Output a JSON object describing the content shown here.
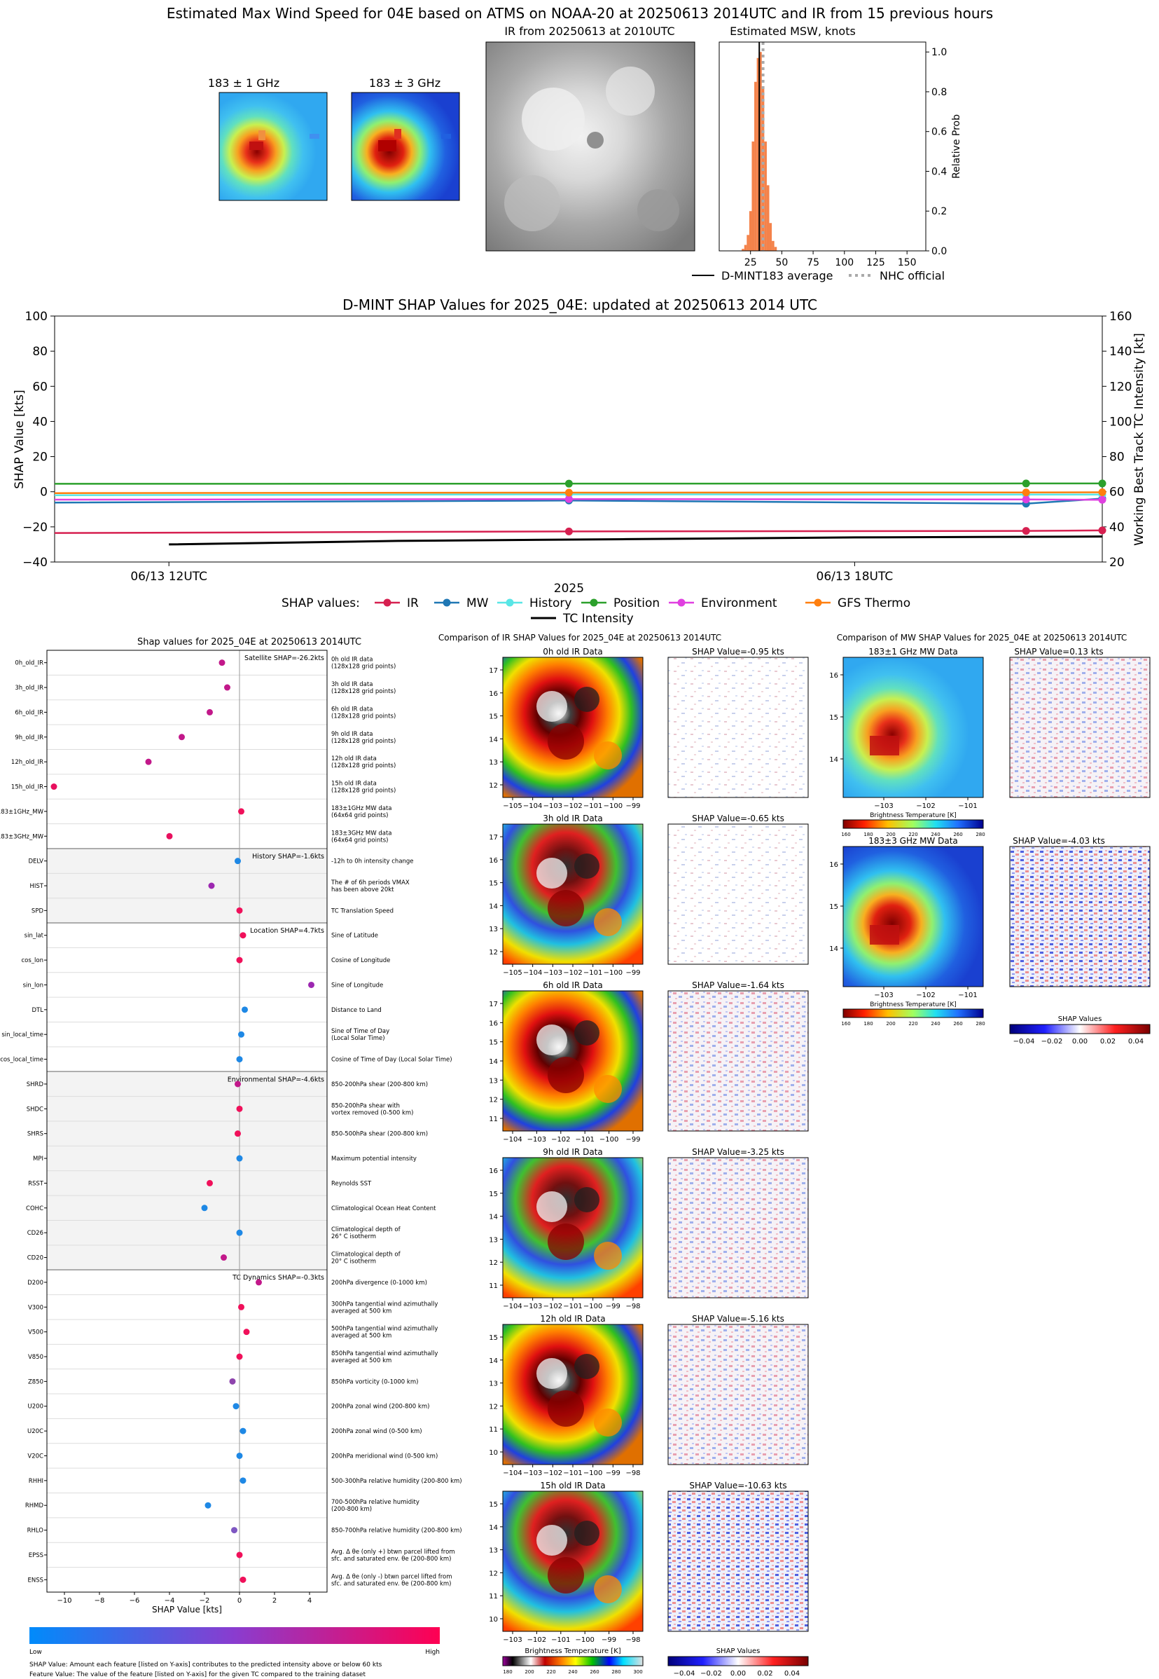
{
  "header": {
    "title": "Estimated Max Wind Speed for 04E based on ATMS on NOAA-20 at 20250613 2014UTC and IR from 15 previous hours",
    "mw1_title": "183 ± 1 GHz",
    "mw2_title": "183 ± 3 GHz",
    "ir_title": "IR from 20250613 at 2010UTC",
    "hist_title": "Estimated MSW, knots"
  },
  "histogram_chart": {
    "type": "bar",
    "xticks": [
      "25",
      "50",
      "75",
      "100",
      "125",
      "150"
    ],
    "xtick_values": [
      25,
      50,
      75,
      100,
      125,
      150
    ],
    "xlim": [
      0,
      165
    ],
    "yticks": [
      "0.0",
      "0.2",
      "0.4",
      "0.6",
      "0.8",
      "1.0"
    ],
    "ytick_values": [
      0,
      0.2,
      0.4,
      0.6,
      0.8,
      1.0
    ],
    "ylim": [
      0,
      1.05
    ],
    "ylabel": "Relative Prob",
    "bins_left": [
      18,
      20,
      22,
      24,
      26,
      28,
      30,
      32,
      34,
      36,
      38,
      40,
      42,
      44
    ],
    "bin_width": 2,
    "bin_values": [
      0.01,
      0.03,
      0.08,
      0.2,
      0.55,
      0.85,
      0.97,
      1.0,
      0.82,
      0.55,
      0.33,
      0.14,
      0.05,
      0.02
    ],
    "dmint_average": 32,
    "nhc_official": 35,
    "legend": [
      "D-MINT183 average",
      "NHC official"
    ],
    "bar_color": "#f4824a"
  },
  "shap_timeseries": {
    "type": "line",
    "title": "D-MINT SHAP Values for 2025_04E: updated at 20250613 2014 UTC",
    "ylabel": "SHAP Value [kts]",
    "y2label": "Working Best Track TC Intensity [kt]",
    "xlabel": "2025",
    "ylim": [
      -40,
      100
    ],
    "y2lim": [
      20,
      160
    ],
    "yticks": [
      "−40",
      "−20",
      "0",
      "20",
      "40",
      "60",
      "80",
      "100"
    ],
    "ytick_values": [
      -40,
      -20,
      0,
      20,
      40,
      60,
      80,
      100
    ],
    "y2ticks": [
      "20",
      "40",
      "60",
      "80",
      "100",
      "120",
      "140",
      "160"
    ],
    "y2tick_values": [
      20,
      40,
      60,
      80,
      100,
      120,
      140,
      160
    ],
    "xlim_hours": [
      -3,
      24.5
    ],
    "xticks": [
      "06/13 12UTC",
      "06/13 18UTC"
    ],
    "xtick_hours": [
      0,
      18
    ],
    "points_hours": [
      10.5,
      22.5
    ],
    "series": [
      {
        "name": "IR",
        "color": "#d62050",
        "values": [
          -23.5,
          -22.6,
          -22.3
        ],
        "hours": [
          -3,
          10.5,
          22.5
        ],
        "end": -22.0
      },
      {
        "name": "MW",
        "color": "#1f77b4",
        "values": [
          -6.2,
          -5.0,
          -6.8
        ],
        "hours": [
          -3,
          10.5,
          22.5
        ],
        "end": -3.9
      },
      {
        "name": "History",
        "color": "#59e6e6",
        "values": [
          -2.0,
          -1.5,
          -1.6
        ],
        "hours": [
          -3,
          10.5,
          22.5
        ],
        "end": -1.6
      },
      {
        "name": "Position",
        "color": "#2ca02c",
        "values": [
          4.5,
          4.6,
          4.7
        ],
        "hours": [
          -3,
          10.5,
          22.5
        ],
        "end": 4.7
      },
      {
        "name": "Environment",
        "color": "#e040e0",
        "values": [
          -4.5,
          -4.2,
          -4.4
        ],
        "hours": [
          -3,
          10.5,
          22.5
        ],
        "end": -4.6
      },
      {
        "name": "GFS Thermo",
        "color": "#ff7f0e",
        "values": [
          -0.8,
          -0.5,
          -0.4
        ],
        "hours": [
          -3,
          10.5,
          22.5
        ],
        "end": -0.3
      }
    ],
    "intensity": {
      "name": "TC Intensity",
      "color": "#000000",
      "hours": [
        0,
        6,
        12,
        18,
        24.5
      ],
      "values": [
        30,
        32,
        33,
        34,
        34.5
      ]
    },
    "legend_prefix": "SHAP values:"
  },
  "feature_chart": {
    "type": "scatter",
    "title": "Shap values for 2025_04E at 20250613 2014UTC",
    "xlabel": "SHAP Value [kts]",
    "xlim": [
      -11,
      5
    ],
    "xticks": [
      "−10",
      "−8",
      "−6",
      "−4",
      "−2",
      "0",
      "2",
      "4"
    ],
    "xtick_values": [
      -10,
      -8,
      -6,
      -4,
      -2,
      0,
      2,
      4
    ],
    "colorbar_low": "Low",
    "colorbar_high": "High",
    "groups": [
      {
        "label": "Satellite SHAP=-26.2kts",
        "shaded": false,
        "count": 8
      },
      {
        "label": "History SHAP=-1.6kts",
        "shaded": true,
        "count": 3
      },
      {
        "label": "Location SHAP=4.7kts",
        "shaded": false,
        "count": 6
      },
      {
        "label": "Environmental SHAP=-4.6kts",
        "shaded": true,
        "count": 8
      },
      {
        "label": "TC Dynamics SHAP=-0.3kts",
        "shaded": false,
        "count": 13
      }
    ],
    "features": [
      {
        "name": "0h_old_IR",
        "desc": [
          "0h old IR data",
          "(128x128 grid points)"
        ],
        "value": -1.0,
        "color": "#c2188a"
      },
      {
        "name": "3h_old_IR",
        "desc": [
          "3h old IR data",
          "(128x128 grid points)"
        ],
        "value": -0.7,
        "color": "#c2188a"
      },
      {
        "name": "6h_old_IR",
        "desc": [
          "6h old IR data",
          "(128x128 grid points)"
        ],
        "value": -1.7,
        "color": "#c2188a"
      },
      {
        "name": "9h_old_IR",
        "desc": [
          "9h old IR data",
          "(128x128 grid points)"
        ],
        "value": -3.3,
        "color": "#c2188a"
      },
      {
        "name": "12h_old_IR",
        "desc": [
          "12h old IR data",
          "(128x128 grid points)"
        ],
        "value": -5.2,
        "color": "#c2188a"
      },
      {
        "name": "15h_old_IR",
        "desc": [
          "15h old IR data",
          "(128x128 grid points)"
        ],
        "value": -10.6,
        "color": "#e8105e"
      },
      {
        "name": "183±1GHz_MW",
        "desc": [
          "183±1GHz MW data",
          "(64x64 grid points)"
        ],
        "value": 0.1,
        "color": "#f0105a"
      },
      {
        "name": "183±3GHz_MW",
        "desc": [
          "183±3GHz MW data",
          "(64x64 grid points)"
        ],
        "value": -4.0,
        "color": "#e8105e"
      },
      {
        "name": "DELV",
        "desc": [
          "-12h to 0h intensity change"
        ],
        "value": -0.1,
        "color": "#1e88e5"
      },
      {
        "name": "HIST",
        "desc": [
          "The # of 6h periods VMAX",
          "has been above 20kt"
        ],
        "value": -1.6,
        "color": "#9c27b0"
      },
      {
        "name": "SPD",
        "desc": [
          "TC Translation Speed"
        ],
        "value": 0.0,
        "color": "#f0105a"
      },
      {
        "name": "sin_lat",
        "desc": [
          "Sine of Latitude"
        ],
        "value": 0.2,
        "color": "#f0105a"
      },
      {
        "name": "cos_lon",
        "desc": [
          "Cosine of Longitude"
        ],
        "value": 0.0,
        "color": "#f0105a"
      },
      {
        "name": "sin_lon",
        "desc": [
          "Sine of Longitude"
        ],
        "value": 4.1,
        "color": "#9c27b0"
      },
      {
        "name": "DTL",
        "desc": [
          "Distance to Land"
        ],
        "value": 0.3,
        "color": "#1e88e5"
      },
      {
        "name": "sin_local_time",
        "desc": [
          "Sine of Time of Day",
          "(Local Solar Time)"
        ],
        "value": 0.1,
        "color": "#1e88e5"
      },
      {
        "name": "cos_local_time",
        "desc": [
          "Cosine of Time of Day (Local Solar Time)"
        ],
        "value": 0.0,
        "color": "#1e88e5"
      },
      {
        "name": "SHRD",
        "desc": [
          "850-200hPa shear (200-800 km)"
        ],
        "value": -0.1,
        "color": "#c2188a"
      },
      {
        "name": "SHDC",
        "desc": [
          "850-200hPa shear with",
          "vortex removed (0-500 km)"
        ],
        "value": 0.0,
        "color": "#f0105a"
      },
      {
        "name": "SHRS",
        "desc": [
          "850-500hPa shear (200-800 km)"
        ],
        "value": -0.1,
        "color": "#f0105a"
      },
      {
        "name": "MPI",
        "desc": [
          "Maximum potential intensity"
        ],
        "value": 0.0,
        "color": "#1e88e5"
      },
      {
        "name": "RSST",
        "desc": [
          "Reynolds SST"
        ],
        "value": -1.7,
        "color": "#f0105a"
      },
      {
        "name": "COHC",
        "desc": [
          "Climatological Ocean Heat Content"
        ],
        "value": -2.0,
        "color": "#1e88e5"
      },
      {
        "name": "CD26",
        "desc": [
          "Climatological depth of",
          "26° C isotherm"
        ],
        "value": 0.0,
        "color": "#1e88e5"
      },
      {
        "name": "CD20",
        "desc": [
          "Climatological depth of",
          "20° C isotherm"
        ],
        "value": -0.9,
        "color": "#c2188a"
      },
      {
        "name": "D200",
        "desc": [
          "200hPa divergence (0-1000 km)"
        ],
        "value": 1.1,
        "color": "#c2188a"
      },
      {
        "name": "V300",
        "desc": [
          "300hPa tangential wind azimuthally",
          "averaged at 500 km"
        ],
        "value": 0.1,
        "color": "#f0105a"
      },
      {
        "name": "V500",
        "desc": [
          "500hPa tangential wind azimuthally",
          "averaged at 500 km"
        ],
        "value": 0.4,
        "color": "#f0105a"
      },
      {
        "name": "V850",
        "desc": [
          "850hPa tangential wind azimuthally",
          "averaged at 500 km"
        ],
        "value": 0.0,
        "color": "#f0105a"
      },
      {
        "name": "Z850",
        "desc": [
          "850hPa vorticity (0-1000 km)"
        ],
        "value": -0.4,
        "color": "#8e44ad"
      },
      {
        "name": "U200",
        "desc": [
          "200hPa zonal wind (200-800 km)"
        ],
        "value": -0.2,
        "color": "#1e88e5"
      },
      {
        "name": "U20C",
        "desc": [
          "200hPa zonal wind (0-500 km)"
        ],
        "value": 0.2,
        "color": "#1e88e5"
      },
      {
        "name": "V20C",
        "desc": [
          "200hPa meridional wind (0-500 km)"
        ],
        "value": 0.0,
        "color": "#1e88e5"
      },
      {
        "name": "RHHI",
        "desc": [
          "500-300hPa relative humidity (200-800 km)"
        ],
        "value": 0.2,
        "color": "#1e88e5"
      },
      {
        "name": "RHMD",
        "desc": [
          "700-500hPa relative humidity",
          "(200-800 km)"
        ],
        "value": -1.8,
        "color": "#1e88e5"
      },
      {
        "name": "RHLO",
        "desc": [
          "850-700hPa relative humidity (200-800 km)"
        ],
        "value": -0.3,
        "color": "#7e57c2"
      },
      {
        "name": "EPSS",
        "desc": [
          "Avg. Δ θe (only +) btwn parcel lifted from",
          "sfc. and saturated env. θe (200-800 km)"
        ],
        "value": 0.0,
        "color": "#f0105a"
      },
      {
        "name": "ENSS",
        "desc": [
          "Avg. Δ θe (only -) btwn parcel lifted from",
          "sfc. and saturated env. θe (200-800 km)"
        ],
        "value": 0.2,
        "color": "#f0105a"
      }
    ],
    "footnote1": "SHAP Value: Amount each feature [listed on Y-axis] contributes to the predicted intensity above or below 60 kts",
    "footnote2": "Feature Value: The value of the feature [listed on Y-axis] for the given TC compared to the training dataset"
  },
  "ir_comparison": {
    "title": "Comparison of IR SHAP Values for 2025_04E at 20250613 2014UTC",
    "panels": [
      {
        "label": "0h old IR Data",
        "shap": "SHAP Value=-0.95 kts",
        "xticks": [
          "−105",
          "−104",
          "−103",
          "−102",
          "−101",
          "−100",
          "−99"
        ],
        "yticks": [
          "12",
          "13",
          "14",
          "15",
          "16",
          "17"
        ]
      },
      {
        "label": "3h old IR Data",
        "shap": "SHAP Value=-0.65 kts",
        "xticks": [
          "−105",
          "−104",
          "−103",
          "−102",
          "−101",
          "−100",
          "−99"
        ],
        "yticks": [
          "12",
          "13",
          "14",
          "15",
          "16",
          "17"
        ]
      },
      {
        "label": "6h old IR Data",
        "shap": "SHAP Value=-1.64 kts",
        "xticks": [
          "−104",
          "−103",
          "−102",
          "−101",
          "−100",
          "−99"
        ],
        "yticks": [
          "11",
          "12",
          "13",
          "14",
          "15",
          "16",
          "17"
        ]
      },
      {
        "label": "9h old IR Data",
        "shap": "SHAP Value=-3.25 kts",
        "xticks": [
          "−104",
          "−103",
          "−102",
          "−101",
          "−100",
          "−99",
          "−98"
        ],
        "yticks": [
          "11",
          "12",
          "13",
          "14",
          "15",
          "16"
        ]
      },
      {
        "label": "12h old IR Data",
        "shap": "SHAP Value=-5.16 kts",
        "xticks": [
          "−104",
          "−103",
          "−102",
          "−101",
          "−100",
          "−99",
          "−98"
        ],
        "yticks": [
          "10",
          "11",
          "12",
          "13",
          "14",
          "15"
        ]
      },
      {
        "label": "15h old IR Data",
        "shap": "SHAP Value=-10.63 kts",
        "xticks": [
          "−103",
          "−102",
          "−101",
          "−100",
          "−99",
          "−98"
        ],
        "yticks": [
          "10",
          "11",
          "12",
          "13",
          "14",
          "15"
        ]
      }
    ],
    "cbar_label": "Brightness Temperature [K]",
    "cbar_ticks": [
      "180",
      "200",
      "220",
      "240",
      "260",
      "280",
      "300"
    ],
    "shap_cbar_label": "SHAP Values",
    "shap_cbar_ticks": [
      "−0.04",
      "−0.02",
      "0.00",
      "0.02",
      "0.04"
    ]
  },
  "mw_comparison": {
    "title": "Comparison of MW SHAP Values for 2025_04E at 20250613 2014UTC",
    "panels": [
      {
        "label": "183±1 GHz MW Data",
        "shap": "SHAP Value=0.13 kts"
      },
      {
        "label": "183±3 GHz MW Data",
        "shap": "SHAP Value=-4.03 kts"
      }
    ],
    "xticks": [
      "−103",
      "−102",
      "−101"
    ],
    "yticks": [
      "14",
      "15",
      "16"
    ],
    "cbar_label": "Brightness Temperature [K]",
    "cbar_ticks": [
      "160",
      "180",
      "200",
      "220",
      "240",
      "260",
      "280"
    ],
    "shap_cbar_label": "SHAP Values",
    "shap_cbar_ticks": [
      "−0.04",
      "−0.02",
      "0.00",
      "0.02",
      "0.04"
    ]
  }
}
